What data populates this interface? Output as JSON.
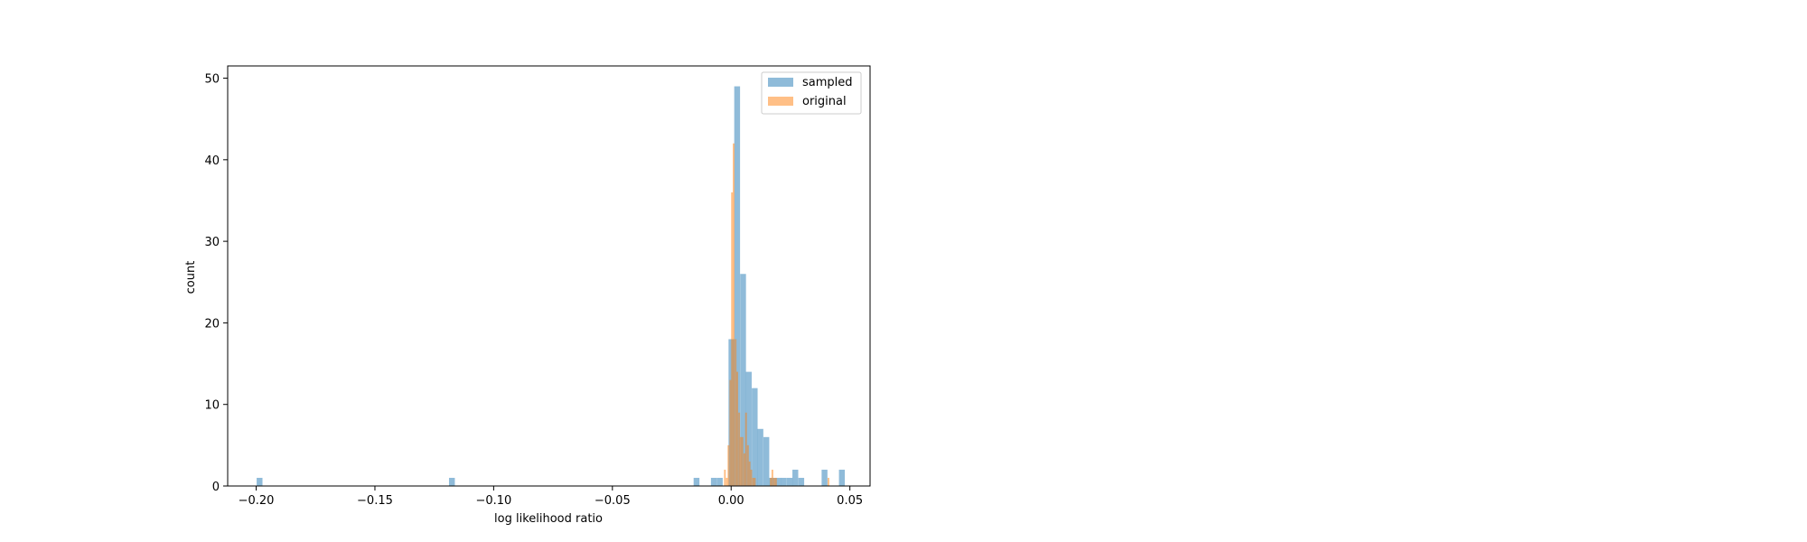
{
  "chart_data": {
    "type": "histogram",
    "title": "",
    "xlabel": "log likelihood ratio",
    "ylabel": "count",
    "xlim": [
      -0.212,
      0.0585
    ],
    "ylim": [
      0,
      51.5
    ],
    "xticks": [
      -0.2,
      -0.15,
      -0.1,
      -0.05,
      0.0,
      0.05
    ],
    "xtick_labels": [
      "−0.20",
      "−0.15",
      "−0.10",
      "−0.05",
      "0.00",
      "0.05"
    ],
    "yticks": [
      0,
      10,
      20,
      30,
      40,
      50
    ],
    "ytick_labels": [
      "0",
      "10",
      "20",
      "30",
      "40",
      "50"
    ],
    "grid": false,
    "legend_position": "top-right",
    "series": [
      {
        "name": "sampled",
        "color": "#1f77b4",
        "opacity": 0.5,
        "bin_width": 0.00245,
        "bins": [
          [
            -0.1998,
            1
          ],
          [
            -0.1188,
            1
          ],
          [
            -0.0158,
            1
          ],
          [
            -0.0085,
            1
          ],
          [
            -0.006,
            1
          ],
          [
            -0.0011,
            18
          ],
          [
            0.0013,
            49
          ],
          [
            0.0038,
            26
          ],
          [
            0.0062,
            14
          ],
          [
            0.0087,
            12
          ],
          [
            0.0111,
            7
          ],
          [
            0.0136,
            6
          ],
          [
            0.016,
            1
          ],
          [
            0.0185,
            1
          ],
          [
            0.0209,
            1
          ],
          [
            0.0234,
            1
          ],
          [
            0.0258,
            2
          ],
          [
            0.0283,
            1
          ],
          [
            0.0381,
            2
          ],
          [
            0.0454,
            2
          ]
        ]
      },
      {
        "name": "original",
        "color": "#ff7f0e",
        "opacity": 0.5,
        "bin_width": 0.00074,
        "bins": [
          [
            -0.003,
            2
          ],
          [
            -0.0022,
            1
          ],
          [
            -0.0015,
            5
          ],
          [
            -0.0007,
            13
          ],
          [
            0.0,
            36
          ],
          [
            0.0007,
            42
          ],
          [
            0.0015,
            18
          ],
          [
            0.0022,
            14
          ],
          [
            0.003,
            9
          ],
          [
            0.0037,
            6
          ],
          [
            0.0044,
            6
          ],
          [
            0.0052,
            4
          ],
          [
            0.0059,
            9
          ],
          [
            0.0067,
            5
          ],
          [
            0.0074,
            3
          ],
          [
            0.0081,
            2
          ],
          [
            0.0089,
            1
          ],
          [
            0.0096,
            1
          ],
          [
            0.0163,
            1
          ],
          [
            0.017,
            2
          ],
          [
            0.0178,
            1
          ],
          [
            0.0185,
            1
          ],
          [
            0.0406,
            1
          ]
        ]
      }
    ]
  }
}
